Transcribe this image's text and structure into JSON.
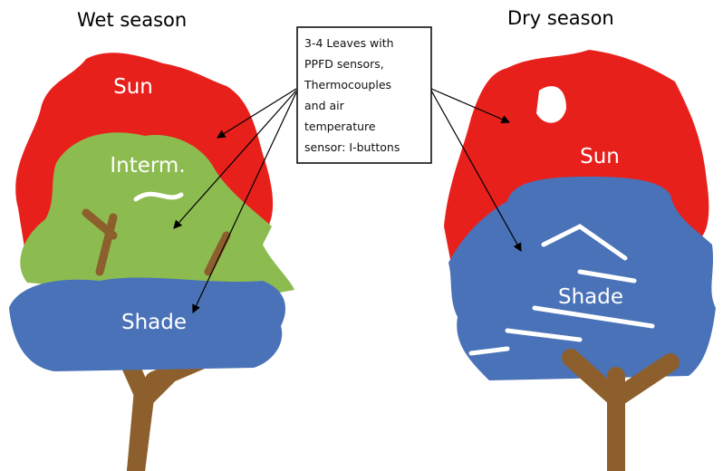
{
  "panels": [
    {
      "title": "Wet season",
      "labels": [
        "Sun",
        "Interm.",
        "Shade"
      ]
    },
    {
      "title": "Dry season",
      "labels": [
        "Sun",
        "Shade"
      ]
    }
  ],
  "annotation": {
    "lines": [
      "3-4 Leaves with",
      "PPFD sensors,",
      "Thermocouples",
      "and air",
      "temperature",
      "sensor: I-buttons"
    ]
  }
}
